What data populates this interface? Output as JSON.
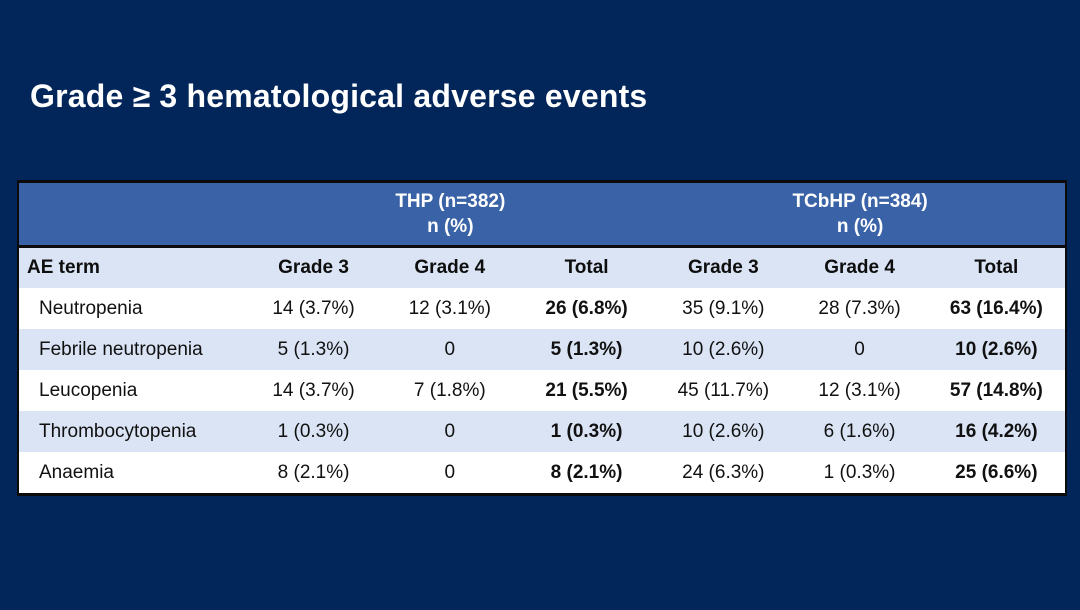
{
  "slide": {
    "title": "Grade ≥ 3 hematological adverse events",
    "colors": {
      "background": "#02265A",
      "group_header_blue": "#3A62A6",
      "light_row_blue": "#DAE4F4",
      "white_row": "#FFFFFF",
      "border_black": "#0B0B0B",
      "title_text": "#FFFFFF"
    }
  },
  "chart_data": {
    "type": "table",
    "title": "Grade ≥ 3 hematological adverse events",
    "group_headers": [
      {
        "title": "THP (n=382)",
        "subtitle": "n (%)",
        "span": 3
      },
      {
        "title": "TCbHP (n=384)",
        "subtitle": "n (%)",
        "span": 3
      }
    ],
    "columns": [
      "AE term",
      "Grade 3",
      "Grade 4",
      "Total",
      "Grade 3",
      "Grade 4",
      "Total"
    ],
    "bold_columns": [
      "Total"
    ],
    "rows": [
      {
        "label": "Neutropenia",
        "values": [
          "14 (3.7%)",
          "12 (3.1%)",
          "26 (6.8%)",
          "35 (9.1%)",
          "28 (7.3%)",
          "63 (16.4%)"
        ]
      },
      {
        "label": "Febrile neutropenia",
        "values": [
          "5 (1.3%)",
          "0",
          "5 (1.3%)",
          "10 (2.6%)",
          "0",
          "10 (2.6%)"
        ]
      },
      {
        "label": "Leucopenia",
        "values": [
          "14 (3.7%)",
          "7 (1.8%)",
          "21 (5.5%)",
          "45 (11.7%)",
          "12 (3.1%)",
          "57 (14.8%)"
        ]
      },
      {
        "label": "Thrombocytopenia",
        "values": [
          "1 (0.3%)",
          "0",
          "1 (0.3%)",
          "10 (2.6%)",
          "6 (1.6%)",
          "16 (4.2%)"
        ]
      },
      {
        "label": "Anaemia",
        "values": [
          "8 (2.1%)",
          "0",
          "8 (2.1%)",
          "24 (6.3%)",
          "1 (0.3%)",
          "25 (6.6%)"
        ]
      }
    ]
  }
}
